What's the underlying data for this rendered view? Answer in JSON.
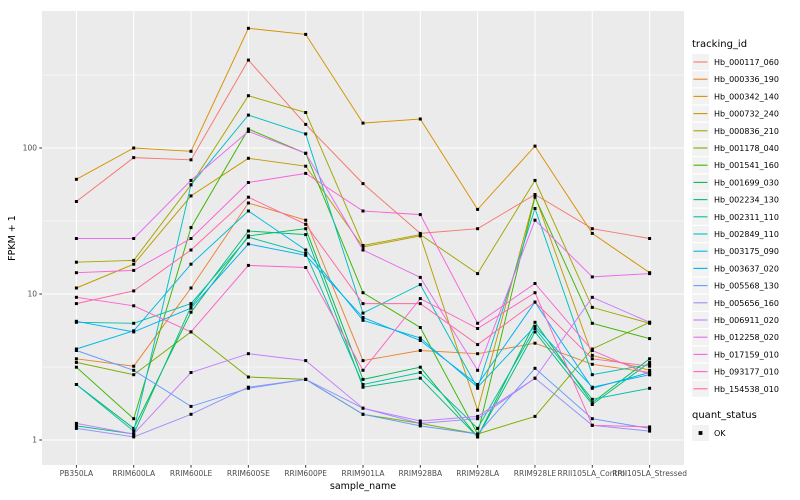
{
  "chart": {
    "xlabel": "sample_name",
    "ylabel": "FPKM + 1",
    "panel_bg": "#EBEBEB",
    "gridline_color": "#FFFFFF",
    "tick_color": "#333333",
    "tick_label_color": "#4D4D4D",
    "point_color": "#000000",
    "legend_key_bg": "#F2F2F2",
    "legend": {
      "tracking_title": "tracking_id",
      "quant_title": "quant_status",
      "quant_label": "OK"
    }
  },
  "chart_data": {
    "type": "line",
    "x_type": "categorical",
    "title": "",
    "xlabel": "sample_name",
    "ylabel": "FPKM + 1",
    "y_scale": "log10",
    "y_ticks": [
      "1",
      "10",
      "100"
    ],
    "y_tick_values": [
      1,
      10,
      100
    ],
    "y_minor_values": [
      3.162,
      31.62,
      316.2
    ],
    "ylim": [
      0.68,
      870
    ],
    "grid": true,
    "legend_position": "right",
    "point_shape": "filled-square",
    "quant_status": "OK",
    "categories": [
      "PB350LA",
      "RRIM600LA",
      "RRIM600LE",
      "RRIM600SE",
      "RRIM600PE",
      "RRIM901LA",
      "RRIM928BA",
      "RRIM928LA",
      "RRIM928LE",
      "RRII105LA_Control",
      "RRII105LA_Stressed"
    ],
    "series": [
      {
        "name": "Hb_000117_060",
        "color": "#F8766D",
        "values": [
          43,
          86,
          83,
          400,
          145,
          57,
          26,
          28,
          48,
          28,
          24
        ]
      },
      {
        "name": "Hb_000336_190",
        "color": "#EA8331",
        "values": [
          3.6,
          3.2,
          11,
          42,
          32,
          3.5,
          4.1,
          3.9,
          4.6,
          3.3,
          2.9
        ]
      },
      {
        "name": "Hb_000342_140",
        "color": "#D89000",
        "values": [
          61,
          100,
          95,
          660,
          600,
          148,
          158,
          38,
          103,
          26,
          14
        ]
      },
      {
        "name": "Hb_000732_240",
        "color": "#C09B00",
        "values": [
          11,
          16,
          47,
          85,
          75,
          21,
          25,
          1.6,
          47,
          3.8,
          3.0
        ]
      },
      {
        "name": "Hb_000836_210",
        "color": "#A3A500",
        "values": [
          16.5,
          17,
          56,
          228,
          175,
          21.5,
          25.5,
          13.8,
          60,
          8.1,
          6.3
        ]
      },
      {
        "name": "Hb_001178_040",
        "color": "#7CAE00",
        "values": [
          3.4,
          2.8,
          5.5,
          2.7,
          2.6,
          1.5,
          1.3,
          1.1,
          1.45,
          4.2,
          6.4
        ]
      },
      {
        "name": "Hb_001541_160",
        "color": "#39B600",
        "values": [
          3.15,
          1.4,
          28.5,
          135,
          92,
          10.2,
          5.9,
          1.1,
          46,
          6.3,
          4.95
        ]
      },
      {
        "name": "Hb_001699_030",
        "color": "#00BB4E",
        "values": [
          2.4,
          1.2,
          7.5,
          25,
          28,
          2.6,
          3.15,
          1.05,
          6.4,
          1.8,
          3.6
        ]
      },
      {
        "name": "Hb_002234_130",
        "color": "#00BF7D",
        "values": [
          1.25,
          1.1,
          8.2,
          27,
          25.5,
          2.3,
          2.65,
          1.05,
          5.5,
          1.75,
          3.4
        ]
      },
      {
        "name": "Hb_002311_110",
        "color": "#00C1A3",
        "values": [
          6.4,
          6.3,
          8.6,
          24.5,
          19,
          2.4,
          2.9,
          1.2,
          5.8,
          1.9,
          2.26
        ]
      },
      {
        "name": "Hb_002849_110",
        "color": "#00BFC4",
        "values": [
          2.4,
          1.15,
          56,
          168,
          125,
          7.4,
          11.6,
          2.26,
          38.5,
          2.8,
          3.3
        ]
      },
      {
        "name": "Hb_003175_090",
        "color": "#00BAE0",
        "values": [
          4.2,
          5.6,
          16,
          37,
          20,
          6.6,
          5.0,
          2.3,
          6.0,
          2.3,
          2.8
        ]
      },
      {
        "name": "Hb_003637_020",
        "color": "#00B0F6",
        "values": [
          6.5,
          5.5,
          8.0,
          22,
          18.4,
          6.9,
          4.8,
          2.4,
          8.8,
          2.26,
          2.9
        ]
      },
      {
        "name": "Hb_005568_130",
        "color": "#619CFF",
        "values": [
          4.1,
          3.0,
          1.7,
          2.26,
          2.6,
          1.5,
          1.25,
          1.1,
          3.1,
          1.4,
          1.2
        ]
      },
      {
        "name": "Hb_005656_160",
        "color": "#9590FF",
        "values": [
          1.2,
          1.05,
          1.5,
          2.3,
          2.6,
          1.65,
          1.3,
          1.4,
          2.65,
          1.26,
          1.15
        ]
      },
      {
        "name": "Hb_006911_020",
        "color": "#C77CFF",
        "values": [
          1.3,
          1.1,
          2.9,
          3.9,
          3.5,
          1.65,
          1.35,
          1.45,
          2.65,
          9.5,
          6.4
        ]
      },
      {
        "name": "Hb_012258_020",
        "color": "#E76BF3",
        "values": [
          24,
          24,
          60,
          130,
          92,
          20,
          13,
          3.0,
          32,
          13.1,
          13.8
        ]
      },
      {
        "name": "Hb_017159_010",
        "color": "#FA62DB",
        "values": [
          14,
          14.5,
          24,
          58,
          67,
          37,
          35,
          6.3,
          11.8,
          4.1,
          2.8
        ]
      },
      {
        "name": "Hb_093177_010",
        "color": "#FF61C9",
        "values": [
          9.5,
          8.3,
          5.5,
          15.7,
          15.2,
          3.0,
          9.3,
          5.8,
          10.2,
          1.26,
          1.23
        ]
      },
      {
        "name": "Hb_154538_010",
        "color": "#FF67A4",
        "values": [
          8.6,
          10.5,
          20,
          46,
          30,
          8.6,
          8.6,
          4.5,
          8.8,
          3.6,
          3.2
        ]
      }
    ]
  }
}
